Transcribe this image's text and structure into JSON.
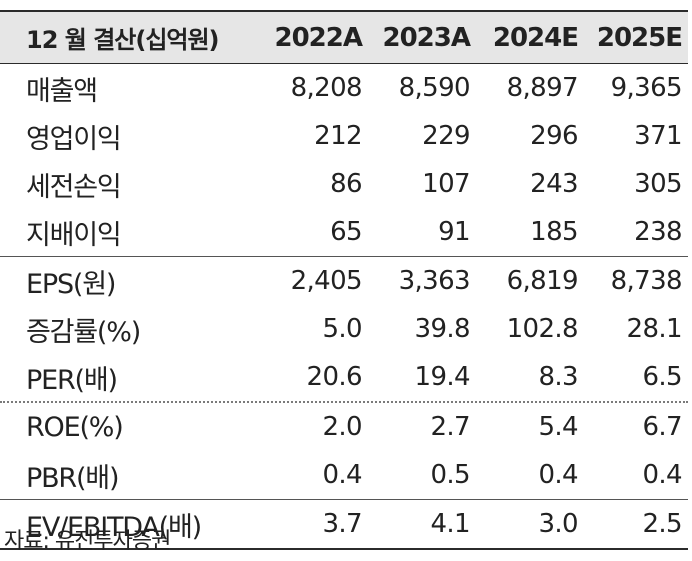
{
  "header": {
    "label": "12 월 결산(십억원)",
    "years": [
      "2022A",
      "2023A",
      "2024E",
      "2025E"
    ]
  },
  "groups": [
    {
      "rows": [
        {
          "label": "매출액",
          "values": [
            "8,208",
            "8,590",
            "8,897",
            "9,365"
          ]
        },
        {
          "label": "영업이익",
          "values": [
            "212",
            "229",
            "296",
            "371"
          ]
        },
        {
          "label": "세전손익",
          "values": [
            "86",
            "107",
            "243",
            "305"
          ]
        },
        {
          "label": "지배이익",
          "values": [
            "65",
            "91",
            "185",
            "238"
          ]
        }
      ]
    },
    {
      "rows": [
        {
          "label": "EPS(원)",
          "values": [
            "2,405",
            "3,363",
            "6,819",
            "8,738"
          ]
        },
        {
          "label": "증감률(%)",
          "values": [
            "5.0",
            "39.8",
            "102.8",
            "28.1"
          ]
        },
        {
          "label": "PER(배)",
          "values": [
            "20.6",
            "19.4",
            "8.3",
            "6.5"
          ]
        }
      ]
    },
    {
      "rows": [
        {
          "label": "ROE(%)",
          "values": [
            "2.0",
            "2.7",
            "5.4",
            "6.7"
          ]
        },
        {
          "label": "PBR(배)",
          "values": [
            "0.4",
            "0.5",
            "0.4",
            "0.4"
          ]
        }
      ]
    },
    {
      "rows": [
        {
          "label": "EV/EBITDA(배)",
          "values": [
            "3.7",
            "4.1",
            "3.0",
            "2.5"
          ]
        }
      ]
    }
  ],
  "source": "자료: 유진투자증권"
}
